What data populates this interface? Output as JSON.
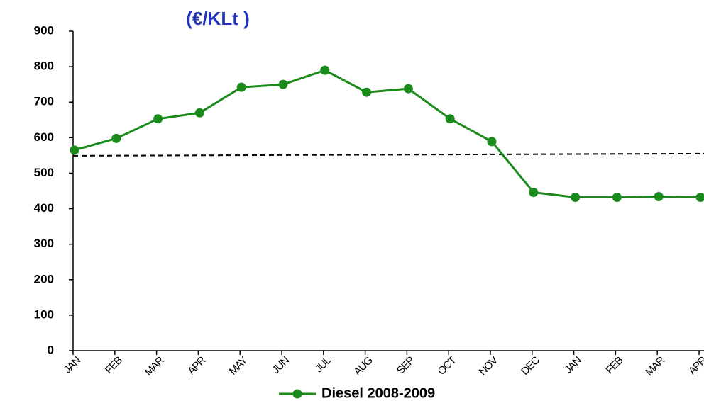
{
  "chart_data": {
    "type": "line",
    "title": "(€/KLt )",
    "categories": [
      "JAN",
      "FEB",
      "MAR",
      "APR",
      "MAY",
      "JUN",
      "JUL",
      "AUG",
      "SEP",
      "OCT",
      "NOV",
      "DEC",
      "JAN",
      "FEB",
      "MAR",
      "APR"
    ],
    "series": [
      {
        "name": "Diesel 2008-2009",
        "color": "#1a8a1a",
        "values": [
          565,
          598,
          653,
          670,
          742,
          750,
          790,
          728,
          738,
          653,
          589,
          446,
          432,
          432,
          434,
          432
        ]
      }
    ],
    "reference_line": {
      "start": 549,
      "end": 555
    },
    "ylim": [
      0,
      900
    ],
    "yticks": [
      0,
      100,
      200,
      300,
      400,
      500,
      600,
      700,
      800,
      900
    ],
    "grid": false,
    "legend": "bottom"
  }
}
